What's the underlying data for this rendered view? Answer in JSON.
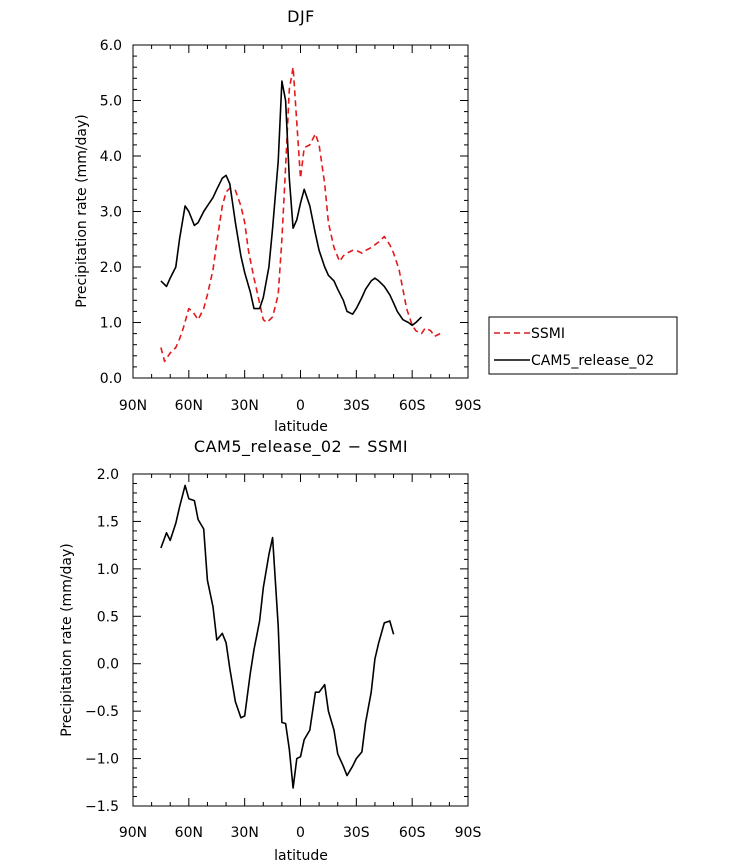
{
  "chart_data": [
    {
      "type": "line",
      "title": "DJF",
      "xlabel": "latitude",
      "ylabel": "Precipitation rate (mm/day)",
      "xlim": [
        -90,
        90
      ],
      "ylim": [
        0,
        6
      ],
      "x_ticks": [
        {
          "value": -90,
          "label": "90N"
        },
        {
          "value": -60,
          "label": "60N"
        },
        {
          "value": -30,
          "label": "30N"
        },
        {
          "value": 0,
          "label": "0"
        },
        {
          "value": 30,
          "label": "30S"
        },
        {
          "value": 60,
          "label": "60S"
        },
        {
          "value": 90,
          "label": "90S"
        }
      ],
      "y_ticks": [
        {
          "value": 0,
          "label": "0.0"
        },
        {
          "value": 1,
          "label": "1.0"
        },
        {
          "value": 2,
          "label": "2.0"
        },
        {
          "value": 3,
          "label": "3.0"
        },
        {
          "value": 4,
          "label": "4.0"
        },
        {
          "value": 5,
          "label": "5.0"
        },
        {
          "value": 6,
          "label": "6.0"
        }
      ],
      "legend": "right",
      "series": [
        {
          "name": "SSMI",
          "color": "#e41a1c",
          "dash": true,
          "x": [
            -75,
            -73,
            -70,
            -67,
            -65,
            -63,
            -60,
            -58,
            -55,
            -52,
            -50,
            -47,
            -45,
            -42,
            -40,
            -38,
            -35,
            -32,
            -30,
            -28,
            -25,
            -22,
            -20,
            -18,
            -15,
            -12,
            -10,
            -8,
            -6,
            -4,
            -2,
            0,
            2,
            5,
            8,
            10,
            13,
            15,
            18,
            21,
            23,
            25,
            28,
            30,
            33,
            35,
            38,
            40,
            42,
            45,
            48,
            50,
            53,
            55,
            57,
            60,
            62,
            65,
            67,
            70,
            72,
            75
          ],
          "values": [
            0.55,
            0.3,
            0.45,
            0.55,
            0.7,
            0.9,
            1.25,
            1.2,
            1.05,
            1.25,
            1.5,
            1.95,
            2.45,
            3.1,
            3.35,
            3.42,
            3.38,
            3.1,
            2.8,
            2.3,
            1.8,
            1.35,
            1.05,
            1.0,
            1.1,
            1.5,
            2.5,
            3.8,
            5.2,
            5.6,
            4.6,
            3.6,
            4.15,
            4.2,
            4.4,
            4.2,
            3.5,
            2.8,
            2.35,
            2.1,
            2.2,
            2.25,
            2.3,
            2.3,
            2.25,
            2.3,
            2.35,
            2.4,
            2.45,
            2.55,
            2.4,
            2.25,
            1.95,
            1.6,
            1.25,
            0.95,
            0.85,
            0.8,
            0.9,
            0.85,
            0.75,
            0.8
          ]
        },
        {
          "name": "CAM5_release_02",
          "color": "#000000",
          "dash": false,
          "x": [
            -75,
            -72,
            -70,
            -67,
            -65,
            -62,
            -60,
            -57,
            -55,
            -52,
            -50,
            -47,
            -45,
            -42,
            -40,
            -38,
            -35,
            -32,
            -30,
            -27,
            -25,
            -22,
            -20,
            -17,
            -15,
            -12,
            -10,
            -8,
            -6,
            -4,
            -2,
            0,
            2,
            5,
            8,
            10,
            13,
            15,
            18,
            20,
            23,
            25,
            28,
            30,
            33,
            35,
            38,
            40,
            42,
            45,
            48,
            50,
            52,
            55,
            58,
            60,
            62,
            65
          ],
          "values": [
            1.75,
            1.65,
            1.8,
            2.0,
            2.5,
            3.1,
            3.0,
            2.75,
            2.8,
            3.0,
            3.1,
            3.25,
            3.4,
            3.6,
            3.65,
            3.5,
            2.8,
            2.2,
            1.9,
            1.55,
            1.25,
            1.25,
            1.45,
            2.0,
            2.7,
            3.9,
            5.35,
            5.0,
            3.6,
            2.7,
            2.85,
            3.15,
            3.4,
            3.1,
            2.6,
            2.3,
            2.0,
            1.85,
            1.75,
            1.6,
            1.4,
            1.2,
            1.15,
            1.25,
            1.45,
            1.6,
            1.75,
            1.8,
            1.75,
            1.65,
            1.5,
            1.35,
            1.2,
            1.05,
            1.0,
            0.95,
            1.0,
            1.1
          ]
        }
      ]
    },
    {
      "type": "line",
      "title": "CAM5_release_02 − SSMI",
      "xlabel": "latitude",
      "ylabel": "Precipitation rate (mm/day)",
      "xlim": [
        -90,
        90
      ],
      "ylim": [
        -1.5,
        2.0
      ],
      "x_ticks": [
        {
          "value": -90,
          "label": "90N"
        },
        {
          "value": -60,
          "label": "60N"
        },
        {
          "value": -30,
          "label": "30N"
        },
        {
          "value": 0,
          "label": "0"
        },
        {
          "value": 30,
          "label": "30S"
        },
        {
          "value": 60,
          "label": "60S"
        },
        {
          "value": 90,
          "label": "90S"
        }
      ],
      "y_ticks": [
        {
          "value": -1.5,
          "label": "−1.5"
        },
        {
          "value": -1.0,
          "label": "−1.0"
        },
        {
          "value": -0.5,
          "label": "−0.5"
        },
        {
          "value": 0.0,
          "label": "0.0"
        },
        {
          "value": 0.5,
          "label": "0.5"
        },
        {
          "value": 1.0,
          "label": "1.0"
        },
        {
          "value": 1.5,
          "label": "1.5"
        },
        {
          "value": 2.0,
          "label": "2.0"
        }
      ],
      "series": [
        {
          "name": "CAM5_release_02 - SSMI",
          "color": "#000000",
          "dash": false,
          "x": [
            -75,
            -72,
            -70,
            -67,
            -65,
            -62,
            -60,
            -57,
            -55,
            -52,
            -50,
            -47,
            -45,
            -42,
            -40,
            -38,
            -35,
            -32,
            -30,
            -27,
            -25,
            -22,
            -20,
            -17,
            -15,
            -12,
            -10,
            -8,
            -6,
            -4,
            -2,
            0,
            2,
            5,
            8,
            10,
            13,
            15,
            18,
            20,
            23,
            25,
            28,
            30,
            33,
            35,
            38,
            40,
            42,
            45,
            48,
            50,
            52,
            55,
            58,
            60,
            62,
            65
          ],
          "values": [
            1.22,
            1.38,
            1.3,
            1.48,
            1.65,
            1.88,
            1.74,
            1.72,
            1.52,
            1.42,
            0.88,
            0.6,
            0.25,
            0.32,
            0.22,
            -0.05,
            -0.4,
            -0.57,
            -0.55,
            -0.1,
            0.15,
            0.45,
            0.8,
            1.15,
            1.33,
            0.4,
            -0.62,
            -0.63,
            -0.9,
            -1.31,
            -1.0,
            -0.98,
            -0.8,
            -0.7,
            -0.3,
            -0.3,
            -0.22,
            -0.5,
            -0.7,
            -0.95,
            -1.08,
            -1.18,
            -1.08,
            -1.0,
            -0.93,
            -0.62,
            -0.3,
            0.05,
            0.22,
            0.43,
            0.45,
            0.31,
            null,
            null,
            null,
            null,
            null,
            null
          ]
        }
      ]
    }
  ]
}
